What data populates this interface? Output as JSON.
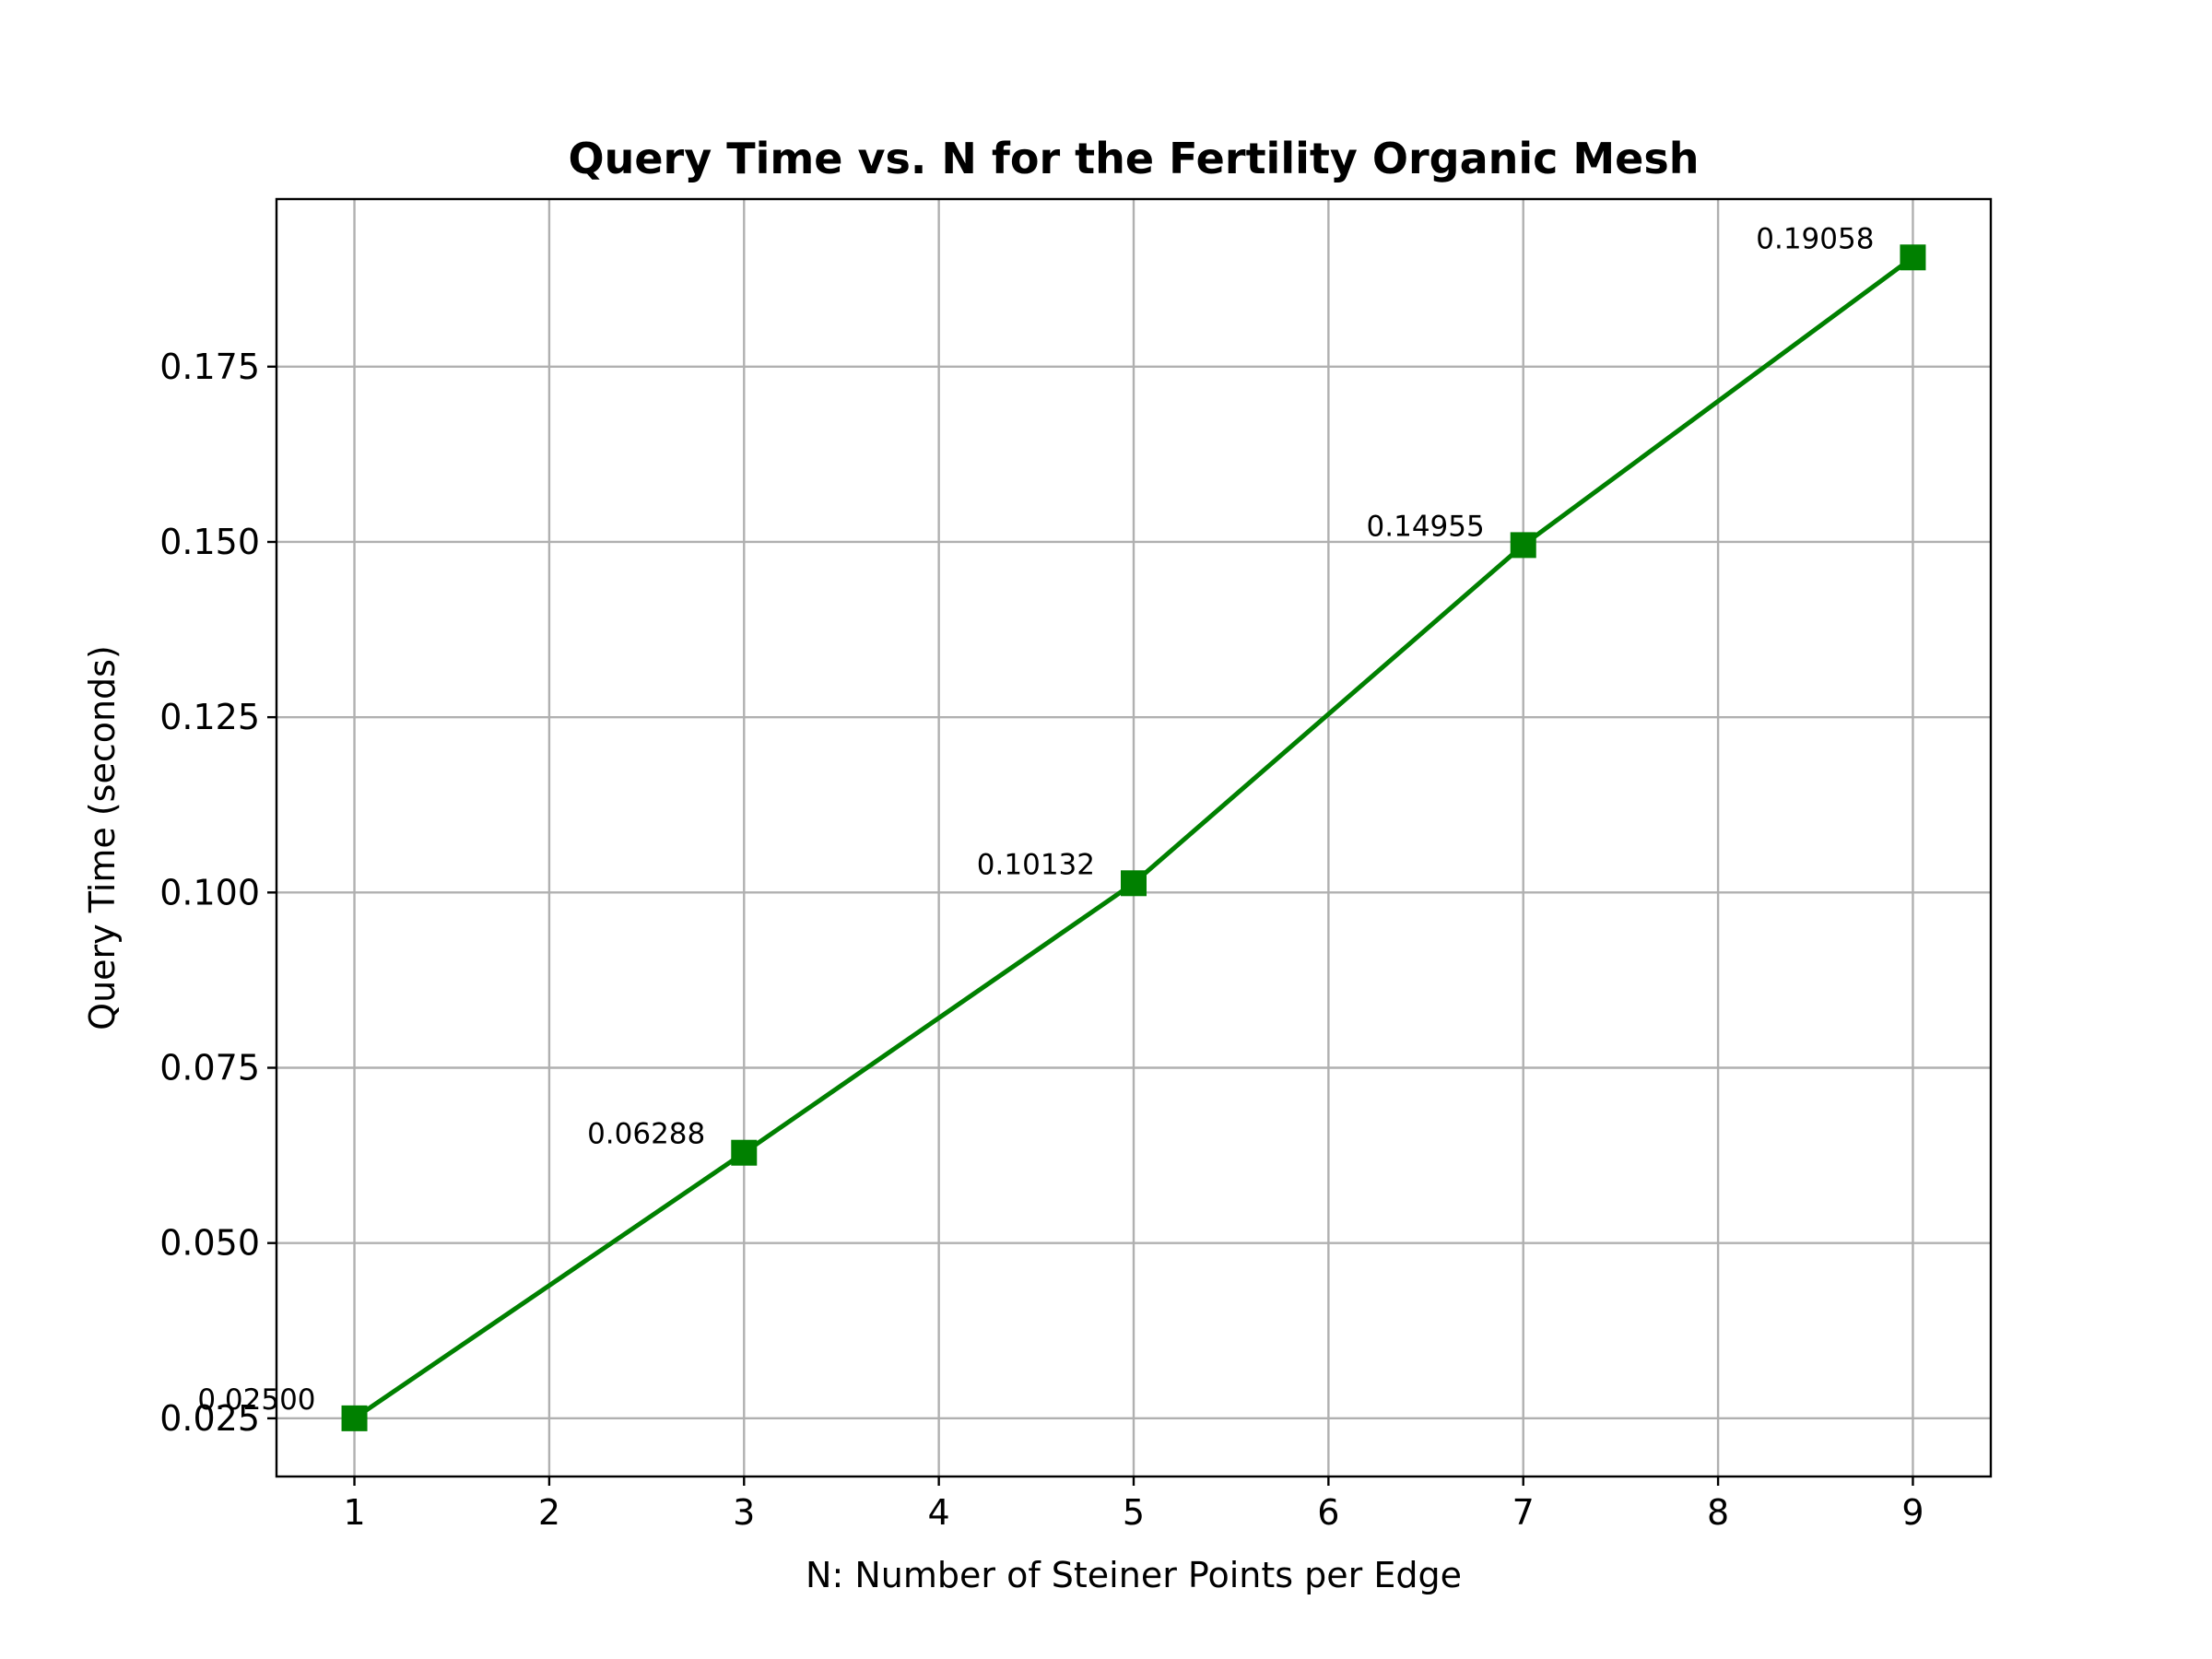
{
  "chart_data": {
    "type": "line",
    "title": "Query Time vs. N for the Fertility Organic Mesh",
    "xlabel": "N: Number of Steiner Points per Edge",
    "ylabel": "Query Time (seconds)",
    "xlim": [
      0.6,
      9.4
    ],
    "ylim": [
      0.0167,
      0.1989
    ],
    "xticks": [
      1,
      2,
      3,
      4,
      5,
      6,
      7,
      8,
      9
    ],
    "yticks": [
      0.025,
      0.05,
      0.075,
      0.1,
      0.125,
      0.15,
      0.175
    ],
    "ytick_labels": [
      "0.025",
      "0.050",
      "0.075",
      "0.100",
      "0.125",
      "0.150",
      "0.175"
    ],
    "grid": true,
    "series": [
      {
        "color": "#008000",
        "marker": "square",
        "x": [
          1,
          3,
          5,
          7,
          9
        ],
        "y": [
          0.025,
          0.06288,
          0.10132,
          0.14955,
          0.19058
        ],
        "labels": [
          "0.02500",
          "0.06288",
          "0.10132",
          "0.14955",
          "0.19058"
        ]
      }
    ]
  }
}
